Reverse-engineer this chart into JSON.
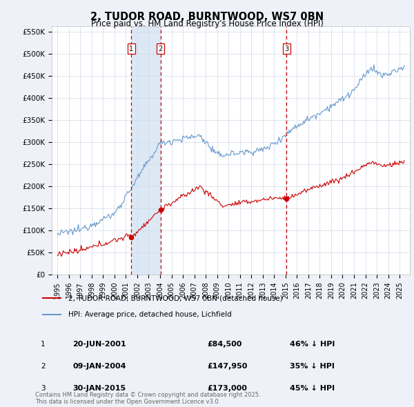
{
  "title": "2, TUDOR ROAD, BURNTWOOD, WS7 0BN",
  "subtitle": "Price paid vs. HM Land Registry's House Price Index (HPI)",
  "legend_label_red": "2, TUDOR ROAD, BURNTWOOD, WS7 0BN (detached house)",
  "legend_label_blue": "HPI: Average price, detached house, Lichfield",
  "transactions": [
    {
      "label": "1",
      "date": "20-JUN-2001",
      "price": 84500,
      "hpi_pct": "46% ↓ HPI",
      "x_year": 2001.47
    },
    {
      "label": "2",
      "date": "09-JAN-2004",
      "price": 147950,
      "hpi_pct": "35% ↓ HPI",
      "x_year": 2004.03
    },
    {
      "label": "3",
      "date": "30-JAN-2015",
      "price": 173000,
      "hpi_pct": "45% ↓ HPI",
      "x_year": 2015.08
    }
  ],
  "footer": "Contains HM Land Registry data © Crown copyright and database right 2025.\nThis data is licensed under the Open Government Licence v3.0.",
  "ylim": [
    0,
    562500
  ],
  "yticks": [
    0,
    50000,
    100000,
    150000,
    200000,
    250000,
    300000,
    350000,
    400000,
    450000,
    500000,
    550000
  ],
  "ytick_labels": [
    "£0",
    "£50K",
    "£100K",
    "£150K",
    "£200K",
    "£250K",
    "£300K",
    "£350K",
    "£400K",
    "£450K",
    "£500K",
    "£550K"
  ],
  "xlim_start": 1994.5,
  "xlim_end": 2025.9,
  "bg_color": "#eef2f8",
  "plot_bg": "#ffffff",
  "red_color": "#cc0000",
  "blue_color": "#6699cc",
  "shade_color": "#dde8f5"
}
